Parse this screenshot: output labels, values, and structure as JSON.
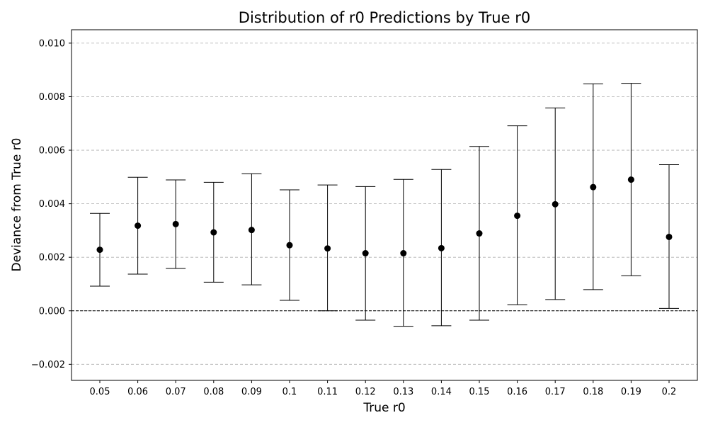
{
  "chart_data": {
    "type": "scatter",
    "title": "Distribution of r0 Predictions by True r0",
    "xlabel": "True r0",
    "ylabel": "Deviance from True r0",
    "categories": [
      "0.05",
      "0.06",
      "0.07",
      "0.08",
      "0.09",
      "0.1",
      "0.11",
      "0.12",
      "0.13",
      "0.14",
      "0.15",
      "0.16",
      "0.17",
      "0.18",
      "0.19",
      "0.2"
    ],
    "series": [
      {
        "values": [
          0.00228,
          0.00318,
          0.00324,
          0.00293,
          0.00302,
          0.00245,
          0.00233,
          0.00215,
          0.00215,
          0.00234,
          0.00289,
          0.00355,
          0.00398,
          0.00462,
          0.0049,
          0.00276
        ],
        "lower": [
          0.00092,
          0.00137,
          0.00158,
          0.00107,
          0.00097,
          0.00039,
          0.0,
          -0.00035,
          -0.00058,
          -0.00056,
          -0.00035,
          0.00023,
          0.00042,
          0.00079,
          0.00131,
          9e-05
        ],
        "upper": [
          0.00364,
          0.00499,
          0.00489,
          0.0048,
          0.00512,
          0.00452,
          0.0047,
          0.00464,
          0.00491,
          0.00528,
          0.00614,
          0.00691,
          0.00758,
          0.00848,
          0.0085,
          0.00546
        ]
      }
    ],
    "ylim": [
      -0.0026,
      0.0105
    ],
    "yticks": [
      -0.002,
      0.0,
      0.002,
      0.004,
      0.006,
      0.008,
      0.01
    ],
    "ytick_labels": [
      "−0.002",
      "0.000",
      "0.002",
      "0.004",
      "0.006",
      "0.008",
      "0.010"
    ],
    "reference_line": 0,
    "grid": "y-dashed",
    "colors": {
      "marker": "#000000",
      "grid": "#b0b0b0",
      "reference": "#000000"
    }
  }
}
